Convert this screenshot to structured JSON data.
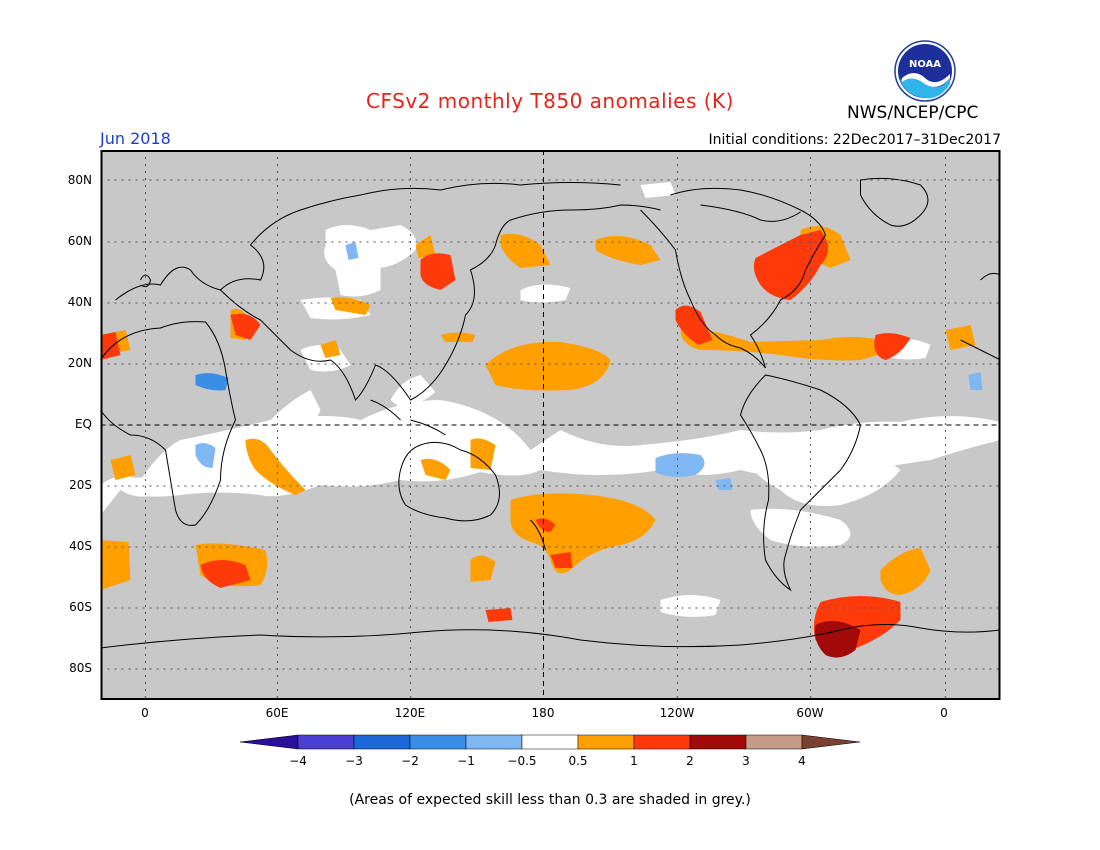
{
  "header": {
    "title": "CFSv2 monthly T850 anomalies (K)",
    "month": "Jun 2018",
    "initial_conditions": "Initial conditions: 22Dec2017–31Dec2017",
    "agency": "NWS/NCEP/CPC",
    "logo_text": "NOAA"
  },
  "axes": {
    "lat_labels": [
      "80N",
      "60N",
      "40N",
      "20N",
      "EQ",
      "20S",
      "40S",
      "60S",
      "80S"
    ],
    "lon_labels": [
      "0",
      "60E",
      "120E",
      "180",
      "120W",
      "60W",
      "0"
    ]
  },
  "colorbar": {
    "labels": [
      "−4",
      "−3",
      "−2",
      "−1",
      "−0.5",
      "0.5",
      "1",
      "2",
      "3",
      "4"
    ],
    "colors": [
      "#2a0f9a",
      "#4b3fd3",
      "#1d67d8",
      "#3b8ee6",
      "#7fb7f2",
      "#ffffff",
      "#ff9f00",
      "#ff3a0a",
      "#a20a0a",
      "#c89a88",
      "#7a4030"
    ]
  },
  "map_colors": {
    "grey": "#c8c8c8",
    "white": "#ffffff",
    "orange": "#ff9f00",
    "red": "#ff3a0a",
    "dark_red": "#a20a0a",
    "light_blue": "#7fb7f2",
    "blue": "#3b8ee6"
  },
  "footnote": "(Areas of expected skill less than 0.3 are shaded in grey.)"
}
